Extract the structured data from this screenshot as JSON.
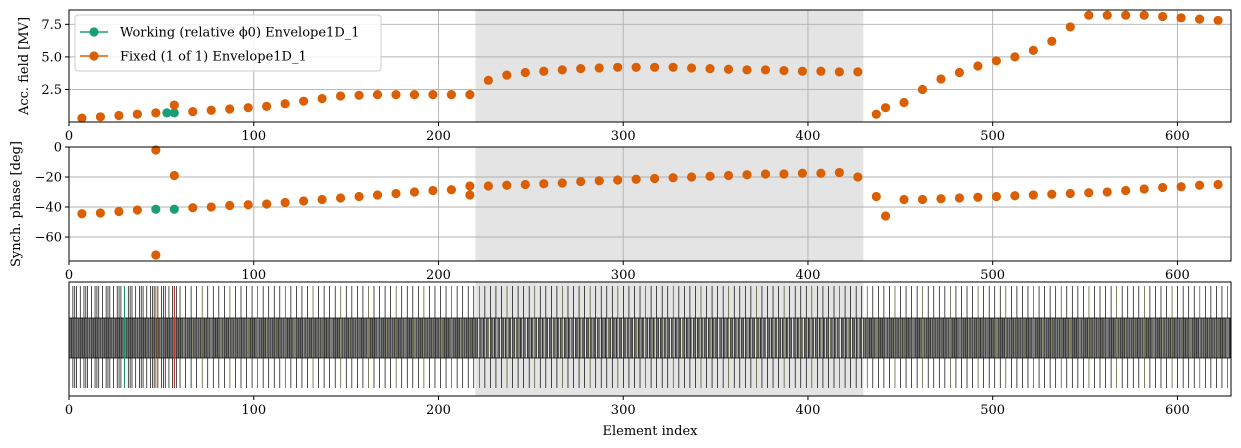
{
  "chart_data": [
    {
      "type": "scatter",
      "ylabel": "Acc. field [MV]",
      "xlim": [
        0,
        629
      ],
      "ylim": [
        0,
        8.6
      ],
      "x_ticks": [
        0,
        100,
        200,
        300,
        400,
        500,
        600
      ],
      "y_ticks": [
        2.5,
        5.0,
        7.5
      ],
      "y_tick_labels": [
        "2.5",
        "5.0",
        "7.5"
      ],
      "grid": true,
      "legend_position": "upper-left",
      "shaded_region": [
        220,
        430
      ],
      "series": [
        {
          "name": "Working (relative ϕ0) Envelope1D_1",
          "color": "#1b9e77",
          "x": [
            53,
            57
          ],
          "y": [
            0.7,
            0.7
          ]
        },
        {
          "name": "Fixed (1 of 1) Envelope1D_1",
          "color": "#d95f02",
          "x": [
            7,
            17,
            27,
            37,
            47,
            57,
            67,
            77,
            87,
            97,
            107,
            117,
            127,
            137,
            147,
            157,
            167,
            177,
            187,
            197,
            207,
            217,
            227,
            237,
            247,
            257,
            267,
            277,
            287,
            297,
            307,
            317,
            327,
            337,
            347,
            357,
            367,
            377,
            387,
            397,
            407,
            417,
            427,
            437,
            442,
            452,
            462,
            472,
            482,
            492,
            502,
            512,
            522,
            532,
            542,
            552,
            562,
            572,
            582,
            592,
            602,
            612,
            622
          ],
          "y": [
            0.3,
            0.4,
            0.5,
            0.6,
            0.7,
            1.3,
            0.8,
            0.9,
            1.0,
            1.1,
            1.2,
            1.4,
            1.6,
            1.8,
            2.0,
            2.05,
            2.1,
            2.1,
            2.1,
            2.1,
            2.1,
            2.1,
            3.2,
            3.6,
            3.8,
            3.9,
            4.0,
            4.1,
            4.15,
            4.2,
            4.2,
            4.2,
            4.2,
            4.15,
            4.1,
            4.05,
            4.0,
            4.0,
            3.95,
            3.9,
            3.9,
            3.85,
            3.85,
            0.6,
            1.1,
            1.5,
            2.5,
            3.3,
            3.8,
            4.3,
            4.7,
            5.0,
            5.5,
            6.2,
            7.3,
            8.2,
            8.2,
            8.2,
            8.2,
            8.1,
            8.0,
            7.9,
            7.8
          ]
        }
      ]
    },
    {
      "type": "scatter",
      "ylabel": "Synch. phase [deg]",
      "xlim": [
        0,
        629
      ],
      "ylim": [
        -76,
        0
      ],
      "x_ticks": [
        0,
        100,
        200,
        300,
        400,
        500,
        600
      ],
      "y_ticks": [
        0,
        -20,
        -40,
        -60
      ],
      "y_tick_labels": [
        "0",
        "−20",
        "−40",
        "−60"
      ],
      "grid": true,
      "shaded_region": [
        220,
        430
      ],
      "series": [
        {
          "color": "#1b9e77",
          "x": [
            47,
            57
          ],
          "y": [
            -41.5,
            -41.5
          ]
        },
        {
          "color": "#d95f02",
          "x": [
            7,
            17,
            27,
            37,
            47,
            47,
            57,
            67,
            77,
            87,
            97,
            107,
            117,
            127,
            137,
            147,
            157,
            167,
            177,
            187,
            197,
            207,
            217,
            217,
            227,
            237,
            247,
            257,
            267,
            277,
            287,
            297,
            307,
            317,
            327,
            337,
            347,
            357,
            367,
            377,
            387,
            397,
            407,
            417,
            427,
            437,
            442,
            452,
            462,
            472,
            482,
            492,
            502,
            512,
            522,
            532,
            542,
            552,
            562,
            572,
            582,
            592,
            602,
            612,
            622
          ],
          "y": [
            -44.5,
            -44,
            -43,
            -42,
            -2,
            -72,
            -19,
            -40.5,
            -40,
            -39,
            -38.5,
            -38,
            -37,
            -36,
            -35,
            -34,
            -33,
            -32,
            -31,
            -30,
            -29,
            -28.5,
            -26,
            -32,
            -26,
            -25.5,
            -25,
            -24.5,
            -24,
            -23,
            -22.5,
            -22,
            -21.5,
            -21,
            -20.5,
            -20,
            -19.5,
            -19,
            -18.5,
            -18,
            -18,
            -17.5,
            -17.5,
            -17,
            -20,
            -33,
            -46,
            -35,
            -35,
            -34.5,
            -34,
            -33.5,
            -33,
            -32.5,
            -32,
            -31.5,
            -31,
            -30.5,
            -30,
            -29,
            -28,
            -27,
            -26.5,
            -25.5,
            -25
          ]
        }
      ]
    },
    {
      "type": "structure",
      "xlabel": "Element index",
      "xlim": [
        0,
        629
      ],
      "x_ticks": [
        0,
        100,
        200,
        300,
        400,
        500,
        600
      ],
      "shaded_region": [
        220,
        430
      ]
    }
  ]
}
